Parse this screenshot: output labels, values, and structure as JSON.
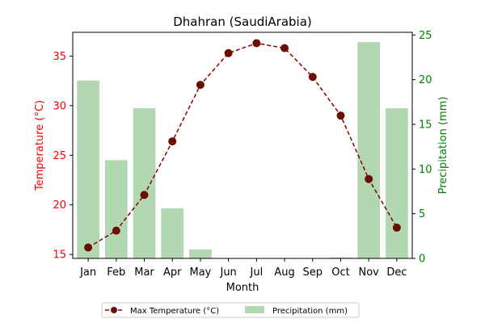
{
  "chart_data": {
    "type": "bar+line",
    "title": "Dhahran (SaudiArabia)",
    "xlabel": "Month",
    "ylabel_left": "Temperature (°C)",
    "ylabel_right": "Precipitation (mm)",
    "categories": [
      "Jan",
      "Feb",
      "Mar",
      "Apr",
      "May",
      "Jun",
      "Jul",
      "Aug",
      "Sep",
      "Oct",
      "Nov",
      "Dec"
    ],
    "left_axis": {
      "ylim": [
        14.6,
        37.4
      ],
      "ticks": [
        15,
        20,
        25,
        30,
        35
      ]
    },
    "right_axis": {
      "ylim": [
        0,
        25.3
      ],
      "ticks": [
        0,
        5,
        10,
        15,
        20,
        25
      ]
    },
    "series": [
      {
        "name": "Max Temperature (°C)",
        "kind": "line",
        "axis": "left",
        "color": "#8b0000",
        "marker_color": "#6b0d00",
        "linestyle": "dashed",
        "values": [
          15.7,
          17.4,
          21.0,
          26.4,
          32.1,
          35.3,
          36.3,
          35.8,
          32.9,
          29.0,
          22.6,
          17.7
        ]
      },
      {
        "name": "Precipitation (mm)",
        "kind": "bar",
        "axis": "right",
        "color": "#b2d8b2",
        "values": [
          19.9,
          11.0,
          16.8,
          5.6,
          1.0,
          0.0,
          0.0,
          0.0,
          0.0,
          0.1,
          24.2,
          16.8
        ]
      }
    ],
    "legend": {
      "placement": "bottom-center",
      "columns": 2
    },
    "grid": false,
    "colors": {
      "left_axis": "#ff0000",
      "right_axis": "#008000",
      "axes": "#000000"
    }
  }
}
